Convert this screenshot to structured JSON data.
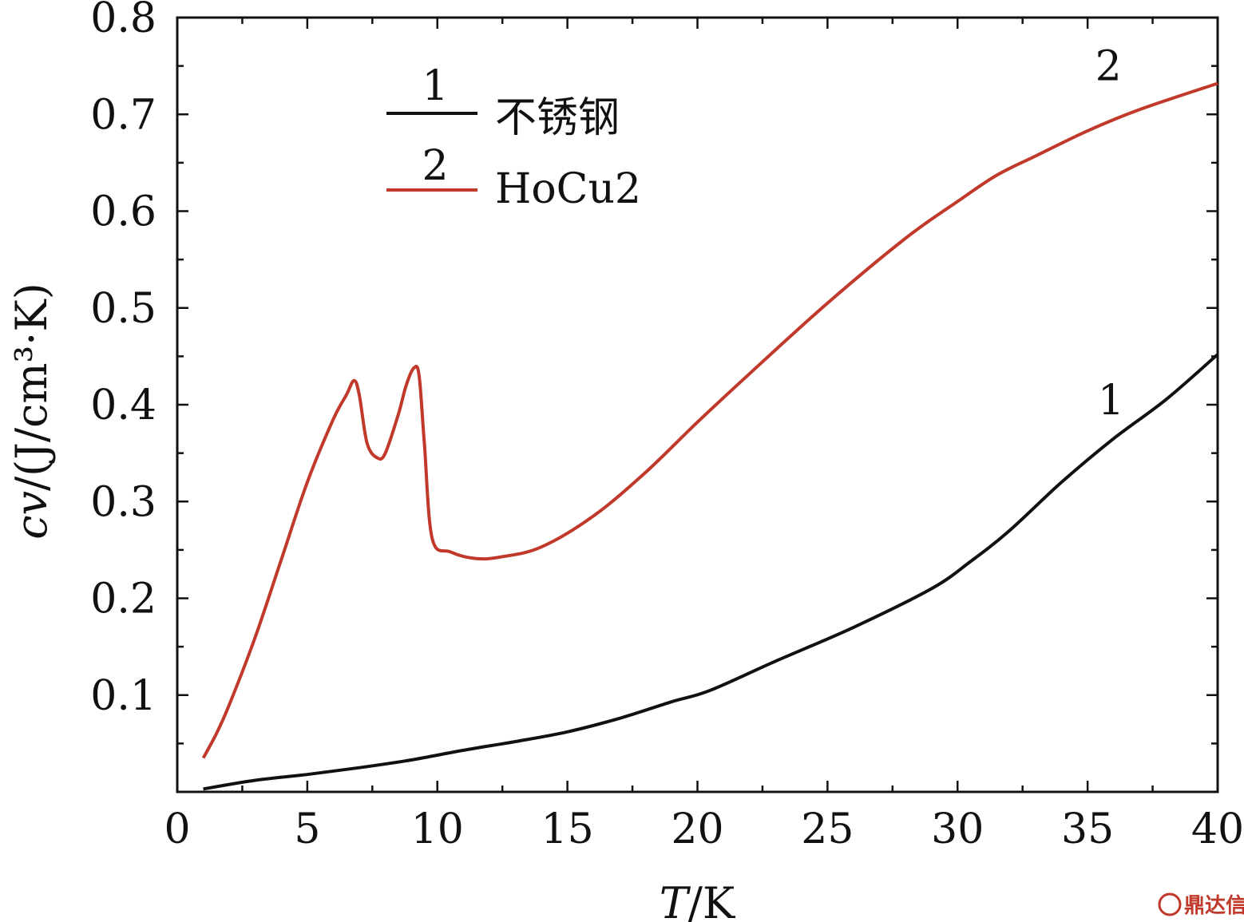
{
  "chart_data": {
    "type": "line",
    "xlabel": "T/K",
    "xlabel_italic": "T",
    "xlabel_unit": "/K",
    "ylabel_symbol": "cv",
    "ylabel_unit": "/(J/cm³·K)",
    "xlim": [
      0,
      40
    ],
    "ylim": [
      0,
      0.8
    ],
    "xticks": [
      "0",
      "5",
      "10",
      "15",
      "20",
      "25",
      "30",
      "35",
      "40"
    ],
    "yticks": [
      "0.1",
      "0.2",
      "0.3",
      "0.4",
      "0.5",
      "0.6",
      "0.7",
      "0.8"
    ],
    "grid": false,
    "legend_position": "top-left",
    "legend": [
      {
        "num": "1",
        "name": "不锈钢",
        "color": "#111111"
      },
      {
        "num": "2",
        "name": "HoCu2",
        "color": "#c0392b"
      }
    ],
    "series": [
      {
        "name": "不锈钢",
        "label": "1",
        "color": "#111111",
        "x": [
          1.0,
          3,
          5,
          7,
          9,
          11,
          13,
          15,
          17,
          19,
          20.5,
          23,
          26,
          29,
          30.5,
          32,
          34,
          36,
          38,
          40
        ],
        "y": [
          0.003,
          0.012,
          0.018,
          0.025,
          0.033,
          0.043,
          0.052,
          0.062,
          0.076,
          0.093,
          0.105,
          0.135,
          0.17,
          0.21,
          0.238,
          0.27,
          0.32,
          0.365,
          0.405,
          0.452
        ]
      },
      {
        "name": "HoCu2",
        "label": "2",
        "color": "#c0392b",
        "x": [
          1.0,
          1.5,
          2,
          3,
          4,
          5,
          6,
          6.5,
          6.8,
          7.0,
          7.3,
          7.7,
          8.0,
          8.5,
          8.8,
          9.1,
          9.3,
          9.5,
          9.8,
          10.5,
          11.5,
          12.5,
          14,
          16,
          18,
          20,
          22,
          25,
          28,
          30,
          31.5,
          33,
          35,
          37,
          40
        ],
        "y": [
          0.035,
          0.06,
          0.09,
          0.16,
          0.24,
          0.32,
          0.385,
          0.41,
          0.425,
          0.41,
          0.36,
          0.345,
          0.35,
          0.39,
          0.42,
          0.438,
          0.43,
          0.36,
          0.262,
          0.248,
          0.241,
          0.243,
          0.253,
          0.285,
          0.33,
          0.382,
          0.432,
          0.505,
          0.572,
          0.61,
          0.637,
          0.657,
          0.683,
          0.705,
          0.732
        ]
      }
    ],
    "annotations": [
      {
        "text": "2",
        "x": 35.8,
        "y": 0.75
      },
      {
        "text": "1",
        "x": 35.9,
        "y": 0.405
      }
    ]
  },
  "watermark": {
    "text": "鼎达信"
  }
}
